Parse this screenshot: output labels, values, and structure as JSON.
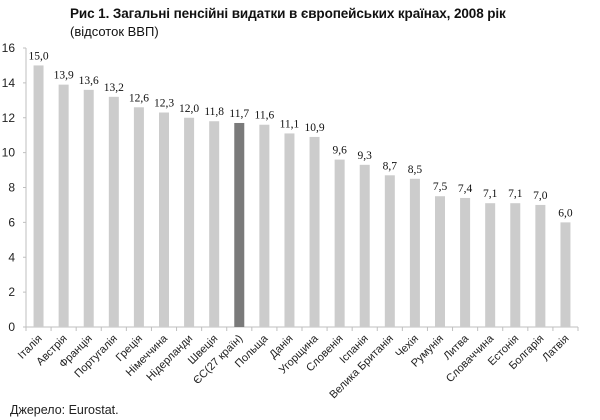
{
  "chart_data": {
    "type": "bar",
    "title": "Рис 1. Загальні пенсійні видатки в європейських країнах, 2008 рік",
    "subtitle": "(відсоток ВВП)",
    "xlabel": "",
    "ylabel": "",
    "ylim": [
      0,
      16
    ],
    "yticks": [
      0,
      2,
      4,
      6,
      8,
      10,
      12,
      14,
      16
    ],
    "grid": false,
    "legend": "none",
    "categories": [
      "Італія",
      "Австрія",
      "Франція",
      "Португалія",
      "Греція",
      "Німеччина",
      "Нідерланди",
      "Швеція",
      "ЄС(27 країн)",
      "Польща",
      "Данія",
      "Угорщина",
      "Словенія",
      "Іспанія",
      "Велика Британія",
      "Чехія",
      "Румунія",
      "Литва",
      "Словаччина",
      "Естонія",
      "Болгарія",
      "Латвія"
    ],
    "values": [
      15.0,
      13.9,
      13.6,
      13.2,
      12.6,
      12.3,
      12.0,
      11.8,
      11.7,
      11.6,
      11.1,
      10.9,
      9.6,
      9.3,
      8.7,
      8.5,
      7.5,
      7.4,
      7.1,
      7.1,
      7.0,
      6.0
    ],
    "value_labels": [
      "15,0",
      "13,9",
      "13,6",
      "13,2",
      "12,6",
      "12,3",
      "12,0",
      "11,8",
      "11,7",
      "11,6",
      "11,1",
      "10,9",
      "9,6",
      "9,3",
      "8,7",
      "8,5",
      "7,5",
      "7,4",
      "7,1",
      "7,1",
      "7,0",
      "6,0"
    ],
    "highlight_category": "ЄС(27 країн)",
    "colors": {
      "bar": "#cccccc",
      "highlight": "#7a7a7a",
      "axis": "#bfbfbf"
    },
    "source": "Джерело:  Eurostat."
  }
}
